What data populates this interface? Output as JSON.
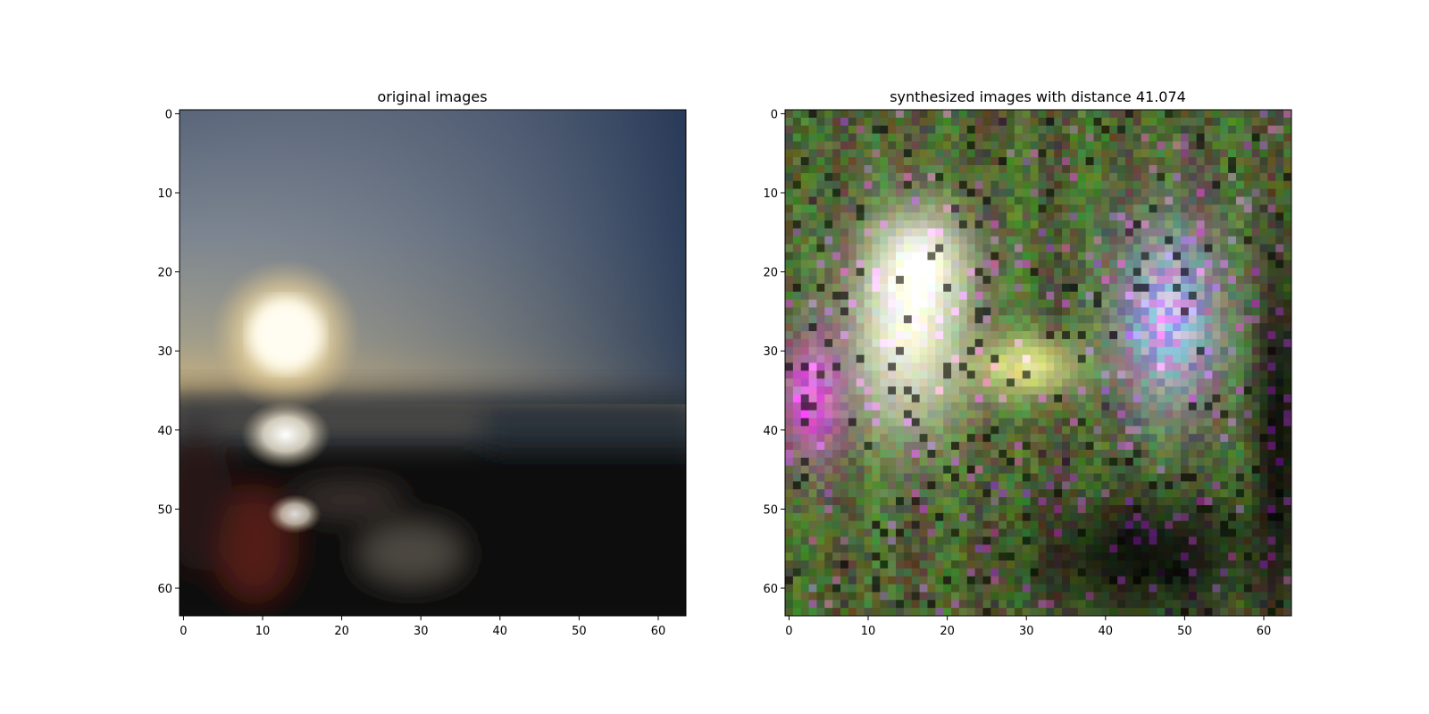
{
  "chart_data": [
    {
      "type": "heatmap",
      "title": "original images",
      "xlim": [
        -0.5,
        63.5
      ],
      "ylim": [
        63.5,
        -0.5
      ],
      "x_ticks": [
        0,
        10,
        20,
        30,
        40,
        50,
        60
      ],
      "y_ticks": [
        0,
        10,
        20,
        30,
        40,
        50,
        60
      ],
      "grid": false,
      "content": "blurred sunset photo over water: bright sun near (13, 29), reflections near (13, 41) and (14, 51), dark foreground"
    },
    {
      "type": "heatmap",
      "title": "synthesized images with distance 41.074",
      "xlim": [
        -0.5,
        63.5
      ],
      "ylim": [
        63.5,
        -0.5
      ],
      "x_ticks": [
        0,
        10,
        20,
        30,
        40,
        50,
        60
      ],
      "y_ticks": [
        0,
        10,
        20,
        30,
        40,
        50,
        60
      ],
      "grid": false,
      "content": "noisy generated texture: white-yellow blob left-center, lavender-blue blob right, magenta speckles on left edge, dark green-black border"
    }
  ]
}
